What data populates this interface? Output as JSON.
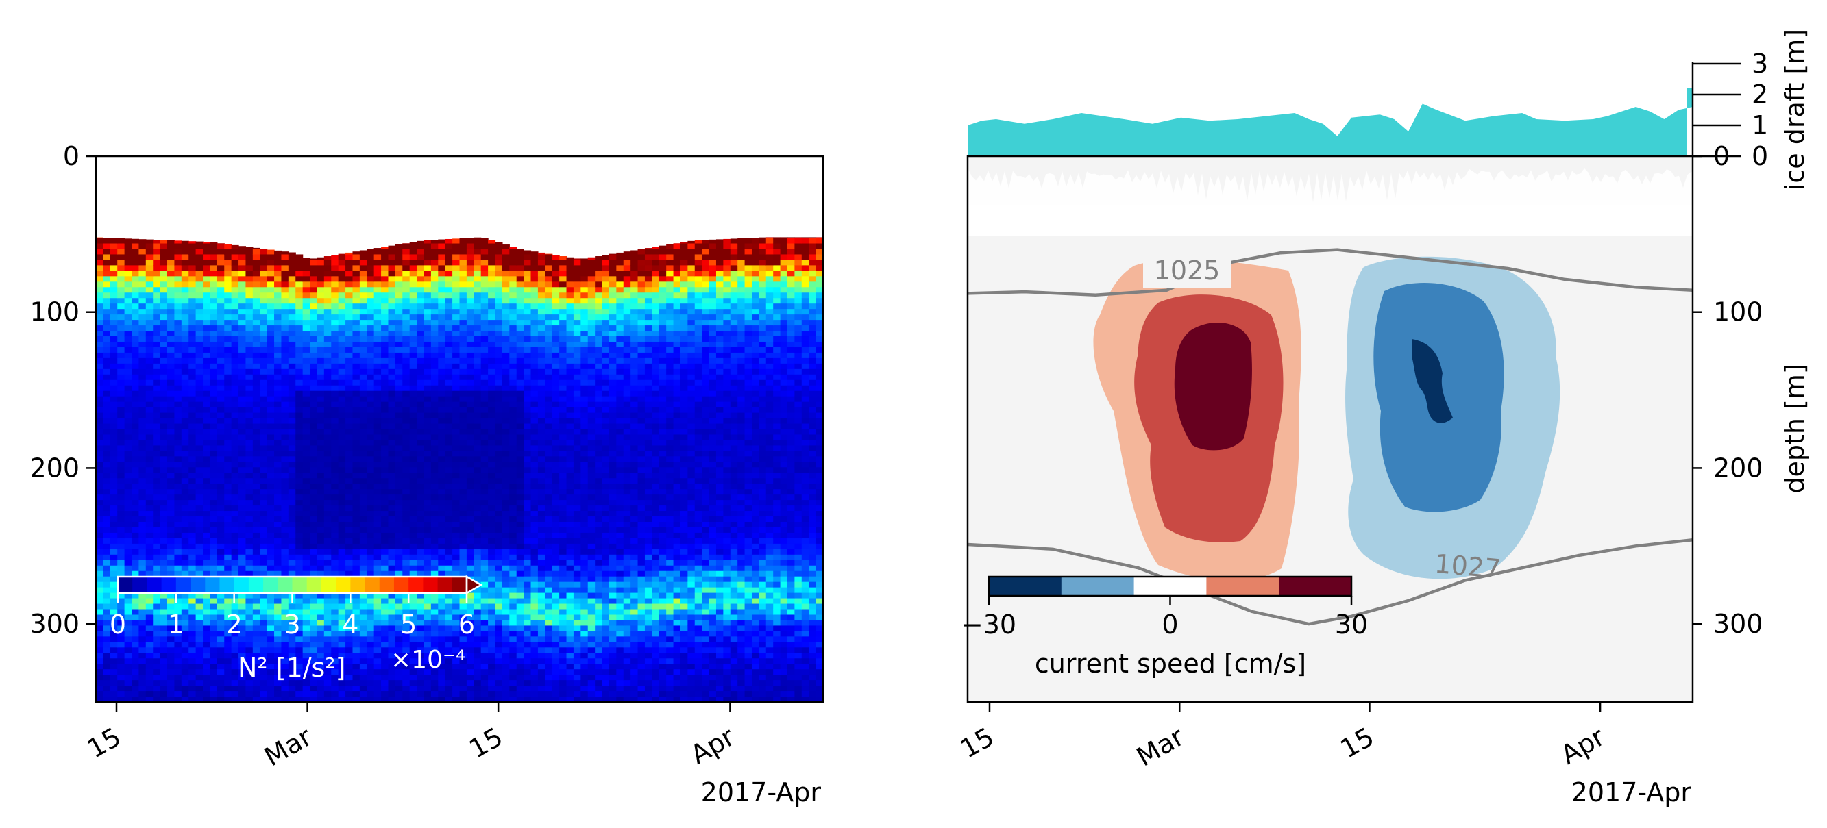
{
  "chart_data": [
    {
      "type": "heatmap",
      "variable": "N²",
      "ylim": [
        0,
        350
      ],
      "y_inverted": true,
      "y_ticks": [
        0,
        100,
        200,
        300
      ],
      "x_range": [
        "2017-02-14",
        "2017-04-06"
      ],
      "x_ticks": [
        {
          "date": "2017-02-15",
          "label": "15"
        },
        {
          "date": "2017-03-01",
          "label": "Mar"
        },
        {
          "date": "2017-03-15",
          "label": "15"
        },
        {
          "date": "2017-04-01",
          "label": "Apr"
        }
      ],
      "x_offset_label": "2017-Apr",
      "mixed_layer_top_m": [
        [
          "2017-02-14",
          52
        ],
        [
          "2017-02-22",
          55
        ],
        [
          "2017-02-28",
          62
        ],
        [
          "2017-03-01",
          66
        ],
        [
          "2017-03-05",
          60
        ],
        [
          "2017-03-09",
          54
        ],
        [
          "2017-03-13",
          52
        ],
        [
          "2017-03-16",
          60
        ],
        [
          "2017-03-20",
          66
        ],
        [
          "2017-03-24",
          60
        ],
        [
          "2017-03-28",
          54
        ],
        [
          "2017-04-02",
          52
        ],
        [
          "2017-04-06",
          52
        ]
      ],
      "profile_m_vs_N2_e4": [
        [
          55,
          6.5
        ],
        [
          62,
          6.0
        ],
        [
          68,
          5.0
        ],
        [
          75,
          3.8
        ],
        [
          82,
          2.8
        ],
        [
          90,
          2.0
        ],
        [
          100,
          1.6
        ],
        [
          110,
          1.1
        ],
        [
          130,
          0.8
        ],
        [
          160,
          0.5
        ],
        [
          200,
          0.45
        ],
        [
          240,
          0.6
        ],
        [
          255,
          1.0
        ],
        [
          265,
          1.5
        ],
        [
          275,
          2.0
        ],
        [
          282,
          2.4
        ],
        [
          292,
          1.5
        ],
        [
          300,
          1.0
        ],
        [
          320,
          0.6
        ],
        [
          340,
          0.4
        ],
        [
          350,
          0.3
        ]
      ],
      "colorbar": {
        "colormap": "jet",
        "range": [
          0,
          6
        ],
        "ticks": [
          "0",
          "1",
          "2",
          "3",
          "4",
          "5",
          "6"
        ],
        "label": "N² [1/s²]",
        "multiplier": "×10⁻⁴",
        "extend": "max"
      }
    },
    {
      "type": "area",
      "name": "ice draft",
      "ylabel": "ice draft [m]",
      "ylim": [
        0,
        3
      ],
      "y_ticks": [
        "0",
        "1",
        "2",
        "3"
      ],
      "points": [
        [
          "2017-02-14",
          1.0
        ],
        [
          "2017-02-15",
          1.15
        ],
        [
          "2017-02-16",
          1.2
        ],
        [
          "2017-02-18",
          1.05
        ],
        [
          "2017-02-20",
          1.2
        ],
        [
          "2017-02-22",
          1.4
        ],
        [
          "2017-02-25",
          1.2
        ],
        [
          "2017-02-27",
          1.05
        ],
        [
          "2017-03-01",
          1.25
        ],
        [
          "2017-03-03",
          1.15
        ],
        [
          "2017-03-05",
          1.2
        ],
        [
          "2017-03-07",
          1.3
        ],
        [
          "2017-03-09",
          1.4
        ],
        [
          "2017-03-10",
          1.2
        ],
        [
          "2017-03-11",
          1.05
        ],
        [
          "2017-03-12",
          0.65
        ],
        [
          "2017-03-13",
          1.25
        ],
        [
          "2017-03-15",
          1.35
        ],
        [
          "2017-03-16",
          1.2
        ],
        [
          "2017-03-17",
          0.8
        ],
        [
          "2017-03-18",
          1.7
        ],
        [
          "2017-03-19",
          1.5
        ],
        [
          "2017-03-21",
          1.15
        ],
        [
          "2017-03-23",
          1.3
        ],
        [
          "2017-03-25",
          1.4
        ],
        [
          "2017-03-26",
          1.2
        ],
        [
          "2017-03-28",
          1.15
        ],
        [
          "2017-03-30",
          1.2
        ],
        [
          "2017-03-31",
          1.3
        ],
        [
          "2017-04-02",
          1.6
        ],
        [
          "2017-04-03",
          1.45
        ],
        [
          "2017-04-04",
          1.2
        ],
        [
          "2017-04-05",
          1.5
        ],
        [
          "2017-04-06",
          1.6
        ],
        [
          "2017-04-06",
          2.2
        ]
      ]
    },
    {
      "type": "heatmap",
      "variable": "current speed",
      "ylabel": "depth [m]",
      "ylim": [
        0,
        350
      ],
      "y_inverted": true,
      "y_ticks": [
        0,
        100,
        200,
        300
      ],
      "x_ticks": [
        {
          "date": "2017-02-15",
          "label": "15"
        },
        {
          "date": "2017-03-01",
          "label": "Mar"
        },
        {
          "date": "2017-03-15",
          "label": "15"
        },
        {
          "date": "2017-04-01",
          "label": "Apr"
        }
      ],
      "x_offset_label": "2017-Apr",
      "colorbar": {
        "colormap": "RdBu_r",
        "levels": [
          -30,
          -18,
          -6,
          6,
          18,
          30
        ],
        "colors": [
          "#053061",
          "#6aa5cd",
          "#ffffff",
          "#e58267",
          "#67001f"
        ],
        "ticks": [
          "−30",
          "0",
          "30"
        ],
        "label": "current speed [cm/s]"
      },
      "density_contours": [
        {
          "label": "1025",
          "points": [
            [
              "2017-02-14",
              88
            ],
            [
              "2017-02-18",
              87
            ],
            [
              "2017-02-23",
              89
            ],
            [
              "2017-02-28",
              86
            ],
            [
              "2017-03-01",
              82
            ],
            [
              "2017-03-04",
              69
            ],
            [
              "2017-03-08",
              62
            ],
            [
              "2017-03-12",
              60
            ],
            [
              "2017-03-16",
              64
            ],
            [
              "2017-03-20",
              68
            ],
            [
              "2017-03-24",
              72
            ],
            [
              "2017-03-28",
              79
            ],
            [
              "2017-04-02",
              84
            ],
            [
              "2017-04-06",
              86
            ]
          ]
        },
        {
          "label": "1027",
          "points": [
            [
              "2017-02-14",
              249
            ],
            [
              "2017-02-20",
              252
            ],
            [
              "2017-02-26",
              264
            ],
            [
              "2017-03-02",
              278
            ],
            [
              "2017-03-06",
              292
            ],
            [
              "2017-03-10",
              300
            ],
            [
              "2017-03-13",
              295
            ],
            [
              "2017-03-17",
              285
            ],
            [
              "2017-03-21",
              272
            ],
            [
              "2017-03-25",
              264
            ],
            [
              "2017-03-29",
              256
            ],
            [
              "2017-04-02",
              250
            ],
            [
              "2017-04-06",
              246
            ]
          ]
        }
      ],
      "eddies": [
        {
          "sign": "positive",
          "levels_cm_s": [
            6,
            18,
            30
          ],
          "center": [
            "2017-03-02",
            140
          ]
        },
        {
          "sign": "negative",
          "levels_cm_s": [
            -6,
            -18,
            -30
          ],
          "center": [
            "2017-03-19",
            150
          ]
        }
      ]
    }
  ]
}
